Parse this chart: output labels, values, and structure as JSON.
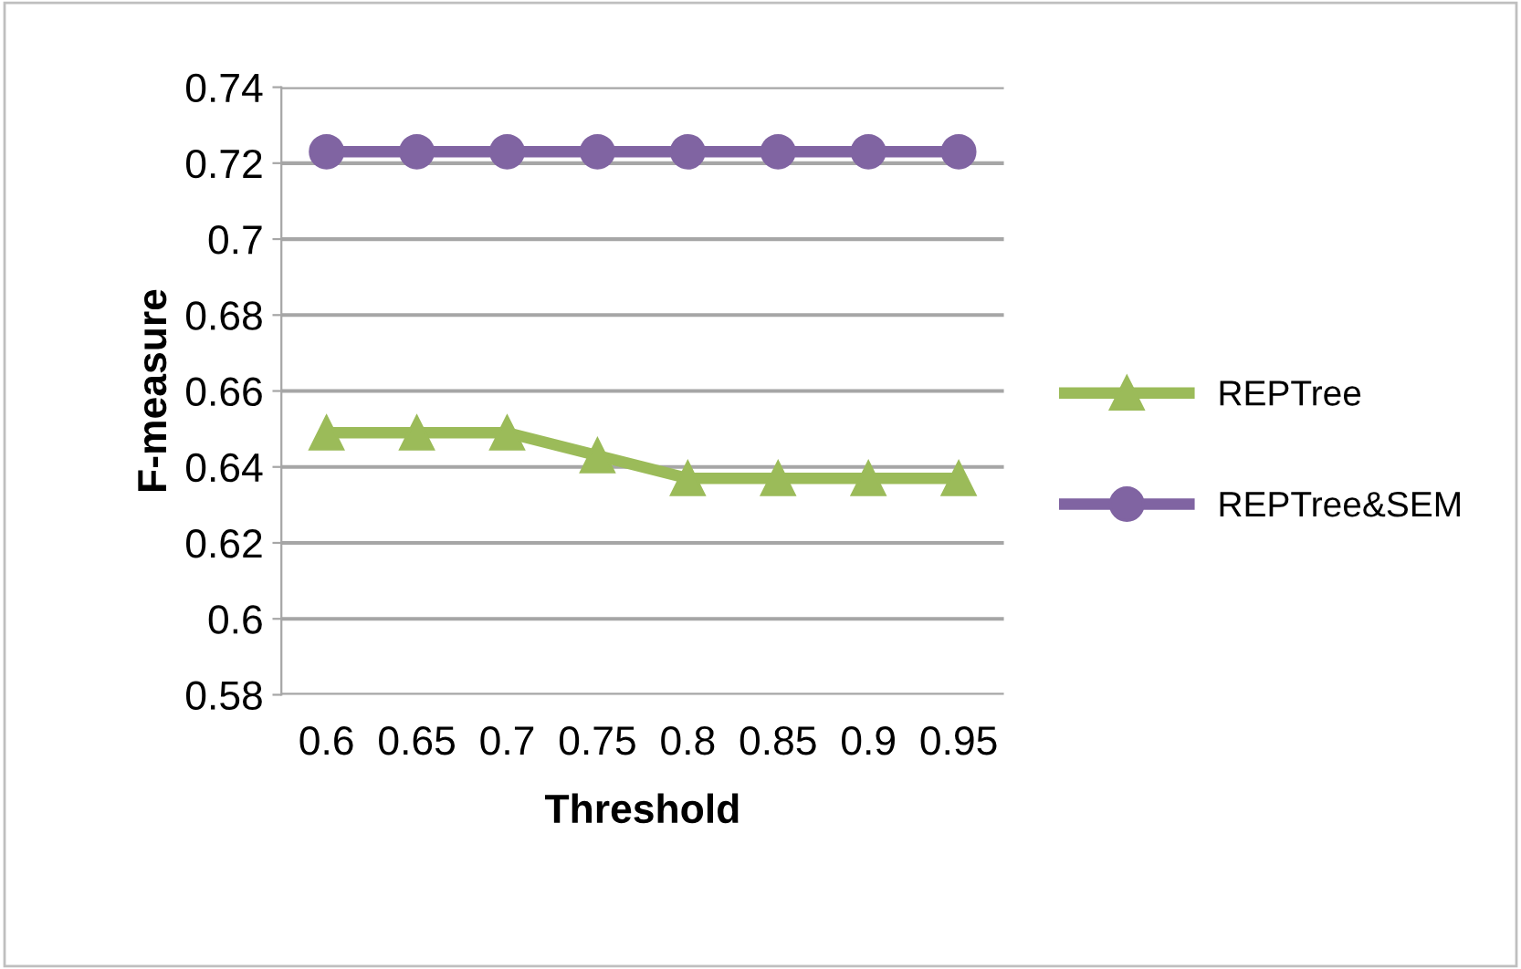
{
  "chart_data": {
    "type": "line",
    "xlabel": "Threshold",
    "ylabel": "F-measure",
    "categories": [
      "0.6",
      "0.65",
      "0.7",
      "0.75",
      "0.8",
      "0.85",
      "0.9",
      "0.95"
    ],
    "series": [
      {
        "name": "REPTree",
        "color": "#9bbb59",
        "marker": "triangle",
        "values": [
          0.649,
          0.649,
          0.649,
          0.643,
          0.637,
          0.637,
          0.637,
          0.637
        ]
      },
      {
        "name": "REPTree&SEM",
        "color": "#8064a2",
        "marker": "circle",
        "values": [
          0.723,
          0.723,
          0.723,
          0.723,
          0.723,
          0.723,
          0.723,
          0.723
        ]
      }
    ],
    "ylim": [
      0.58,
      0.74
    ],
    "yticks": [
      0.58,
      0.6,
      0.62,
      0.64,
      0.66,
      0.68,
      0.7,
      0.72,
      0.74
    ],
    "grid": "y",
    "legend": "right",
    "line_style": "solid"
  }
}
